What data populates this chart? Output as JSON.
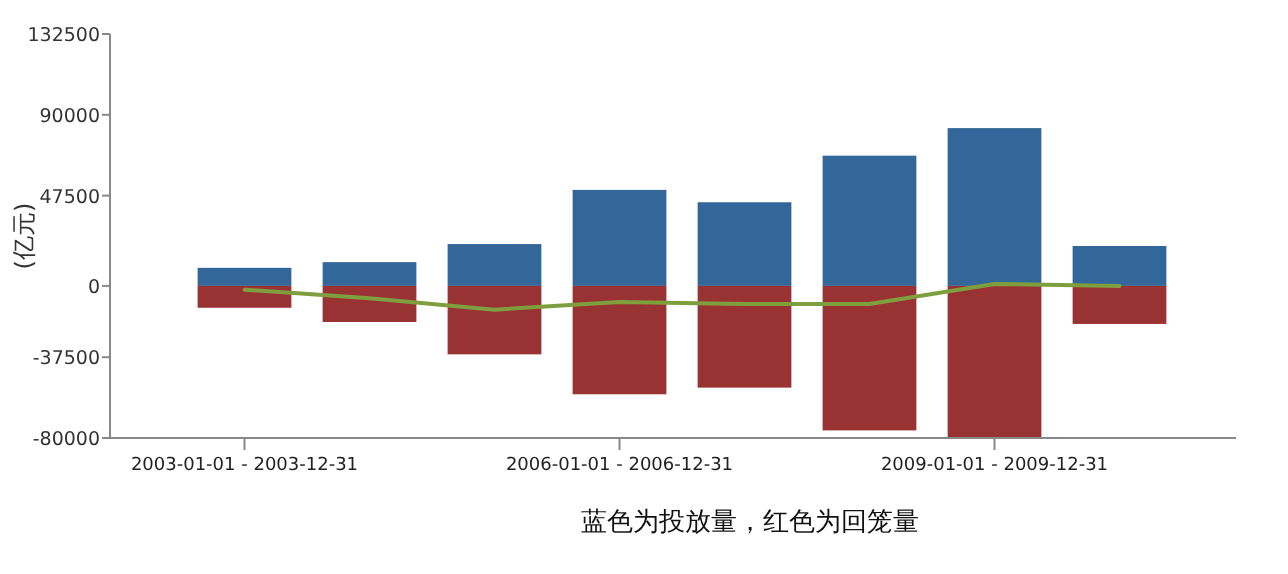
{
  "chart_data": {
    "type": "bar",
    "ylabel": "(亿元)",
    "categories": [
      "2003-01-01 - 2003-12-31",
      null,
      null,
      "2006-01-01 - 2006-12-31",
      null,
      null,
      "2009-01-01 - 2009-12-31",
      null
    ],
    "series": [
      {
        "color": "#336699",
        "values": [
          9500,
          12500,
          22000,
          50500,
          44000,
          68500,
          83000,
          21000
        ]
      },
      {
        "color": "#993333",
        "values": [
          -11500,
          -19000,
          -36000,
          -57000,
          -53500,
          -76000,
          -80000,
          -20000
        ]
      },
      {
        "type": "line",
        "color": "#7f9f3f",
        "values": [
          -2000,
          -6500,
          -12500,
          -8500,
          -9500,
          -9500,
          1000,
          0
        ]
      }
    ],
    "ylim": [
      -80000,
      132500
    ],
    "yticks": [
      -80000,
      -37500,
      0,
      47500,
      90000,
      132500
    ],
    "stacked": true,
    "grid": false,
    "annotations": [
      "蓝色为投放量，红色为回笼量"
    ]
  }
}
